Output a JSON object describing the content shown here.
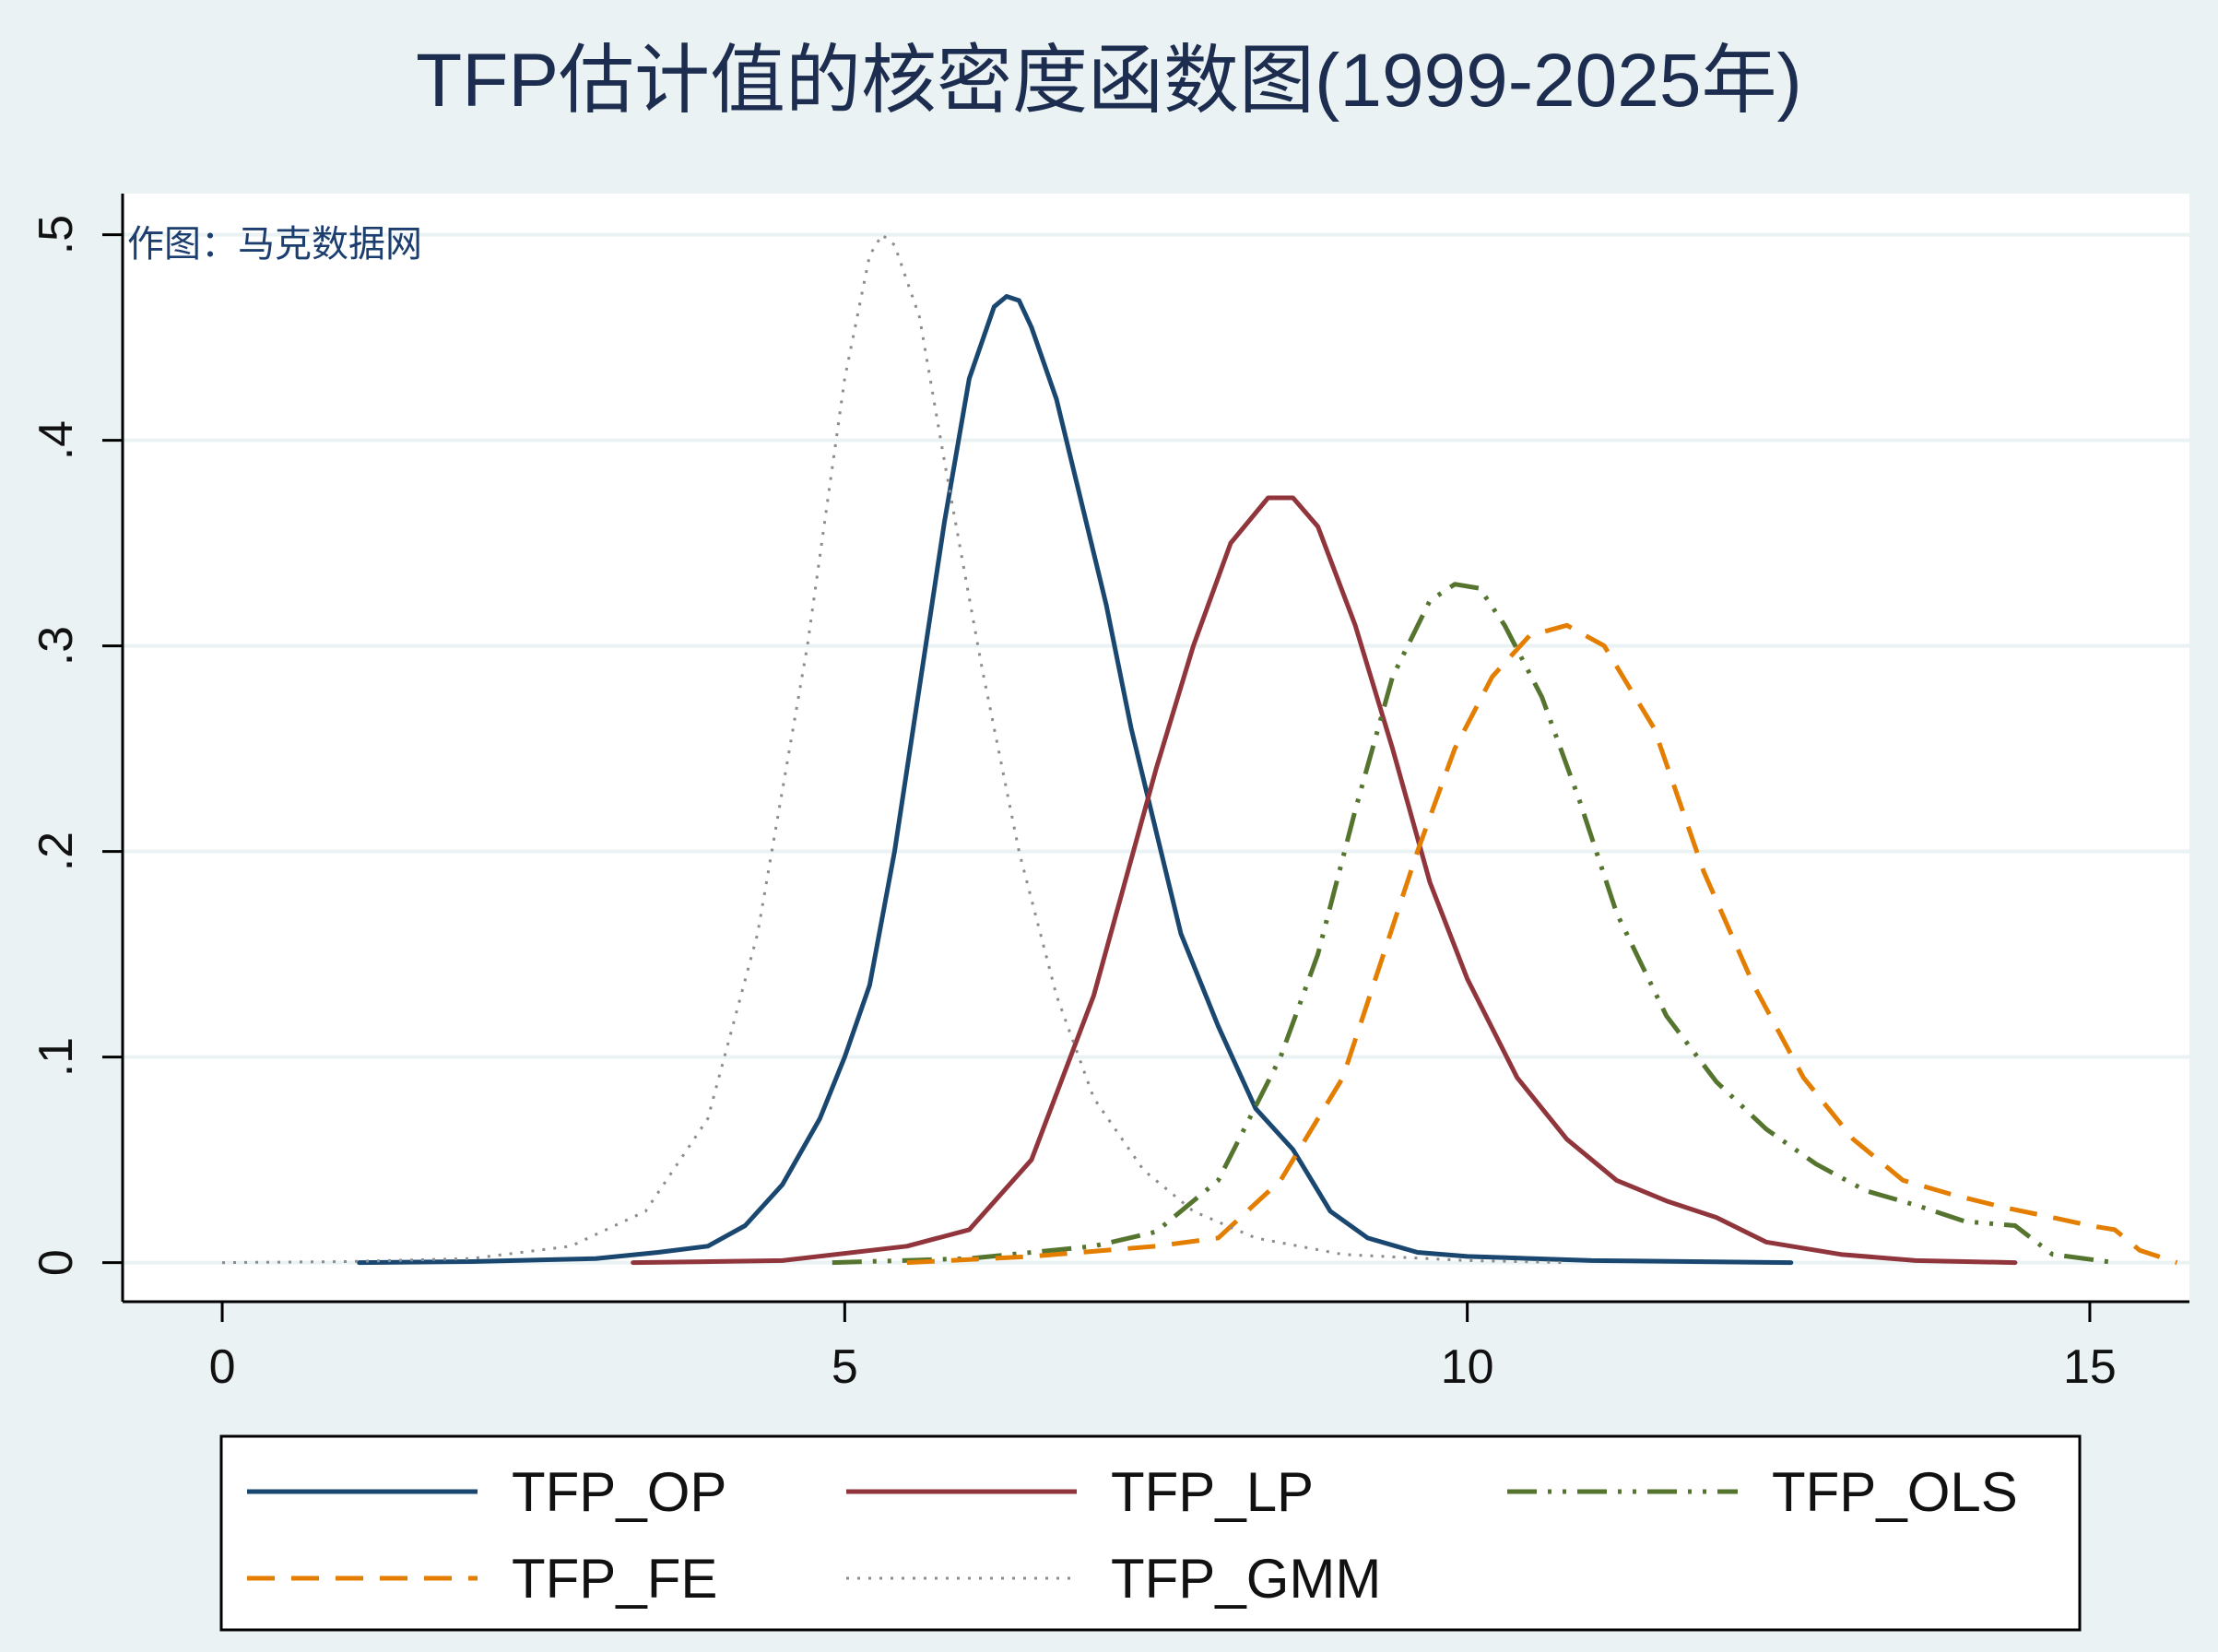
{
  "chart_data": {
    "type": "line",
    "title": "TFP估计值的核密度函数图(1999-2025年)",
    "annotation": "作图：马克数据网",
    "xlabel": "",
    "ylabel": "",
    "xlim": [
      -0.8,
      15.8
    ],
    "ylim": [
      -0.019,
      0.52
    ],
    "x_ticks": [
      0,
      5,
      10,
      15
    ],
    "x_tick_labels": [
      "0",
      "5",
      "10",
      "15"
    ],
    "y_ticks": [
      0,
      0.1,
      0.2,
      0.3,
      0.4,
      0.5
    ],
    "y_tick_labels": [
      "0",
      ".1",
      ".2",
      ".3",
      ".4",
      ".5"
    ],
    "grid": "horizontal",
    "legend": "bottom",
    "series": [
      {
        "name": "TFP_OP",
        "color": "#1a476f",
        "dash": "solid",
        "x": [
          1.1,
          2.0,
          3.0,
          3.5,
          3.9,
          4.2,
          4.5,
          4.8,
          5.0,
          5.2,
          5.4,
          5.6,
          5.8,
          6.0,
          6.2,
          6.3,
          6.4,
          6.5,
          6.7,
          6.9,
          7.1,
          7.3,
          7.5,
          7.7,
          8.0,
          8.3,
          8.6,
          8.9,
          9.2,
          9.6,
          10.0,
          11.0,
          12.6
        ],
        "y": [
          0,
          0.0005,
          0.002,
          0.005,
          0.008,
          0.018,
          0.038,
          0.07,
          0.1,
          0.135,
          0.2,
          0.28,
          0.36,
          0.43,
          0.465,
          0.47,
          0.468,
          0.455,
          0.42,
          0.37,
          0.32,
          0.26,
          0.21,
          0.16,
          0.115,
          0.075,
          0.055,
          0.025,
          0.012,
          0.005,
          0.003,
          0.001,
          0
        ]
      },
      {
        "name": "TFP_LP",
        "color": "#90353b",
        "dash": "solid",
        "x": [
          3.3,
          4.5,
          5.5,
          6.0,
          6.5,
          7.0,
          7.5,
          7.8,
          8.1,
          8.4,
          8.6,
          8.8,
          9.1,
          9.4,
          9.7,
          10.0,
          10.4,
          10.8,
          11.2,
          11.6,
          12.0,
          12.4,
          13.0,
          13.6,
          14.4
        ],
        "y": [
          0,
          0.001,
          0.008,
          0.016,
          0.05,
          0.13,
          0.24,
          0.3,
          0.35,
          0.372,
          0.372,
          0.358,
          0.31,
          0.25,
          0.185,
          0.138,
          0.09,
          0.06,
          0.04,
          0.03,
          0.022,
          0.01,
          0.004,
          0.001,
          0
        ]
      },
      {
        "name": "TFP_OLS",
        "color": "#55752f",
        "dash": "longdash_dot_dot",
        "x": [
          4.9,
          6.0,
          7.0,
          7.5,
          8.0,
          8.5,
          8.8,
          9.1,
          9.4,
          9.7,
          9.9,
          10.1,
          10.3,
          10.6,
          10.9,
          11.2,
          11.6,
          12.0,
          12.4,
          12.8,
          13.2,
          13.6,
          14.0,
          14.4,
          14.7,
          15.2
        ],
        "y": [
          0,
          0.002,
          0.008,
          0.015,
          0.04,
          0.1,
          0.15,
          0.22,
          0.285,
          0.322,
          0.33,
          0.328,
          0.31,
          0.275,
          0.225,
          0.17,
          0.12,
          0.088,
          0.065,
          0.048,
          0.035,
          0.028,
          0.02,
          0.018,
          0.004,
          0
        ]
      },
      {
        "name": "TFP_FE",
        "color": "#e37e00",
        "dash": "dash",
        "x": [
          5.5,
          6.5,
          7.5,
          8.0,
          8.5,
          9.0,
          9.3,
          9.6,
          9.9,
          10.2,
          10.5,
          10.8,
          11.1,
          11.5,
          11.9,
          12.3,
          12.7,
          13.1,
          13.5,
          13.9,
          14.3,
          14.7,
          15.0,
          15.2,
          15.4,
          15.7
        ],
        "y": [
          0,
          0.003,
          0.008,
          0.012,
          0.04,
          0.09,
          0.145,
          0.2,
          0.25,
          0.285,
          0.305,
          0.31,
          0.3,
          0.26,
          0.19,
          0.135,
          0.09,
          0.06,
          0.04,
          0.033,
          0.027,
          0.022,
          0.018,
          0.016,
          0.006,
          0
        ]
      },
      {
        "name": "TFP_GMM",
        "color": "#8c8c8c",
        "dash": "dot",
        "x": [
          0.0,
          1.0,
          2.0,
          2.8,
          3.4,
          3.9,
          4.3,
          4.7,
          5.0,
          5.2,
          5.3,
          5.4,
          5.6,
          5.8,
          6.1,
          6.4,
          6.7,
          7.0,
          7.4,
          7.8,
          8.3,
          9.0,
          10.0,
          10.8
        ],
        "y": [
          0,
          0.0005,
          0.002,
          0.008,
          0.025,
          0.07,
          0.16,
          0.3,
          0.43,
          0.49,
          0.5,
          0.495,
          0.46,
          0.39,
          0.29,
          0.2,
          0.13,
          0.08,
          0.045,
          0.025,
          0.012,
          0.004,
          0.001,
          0
        ]
      }
    ]
  }
}
